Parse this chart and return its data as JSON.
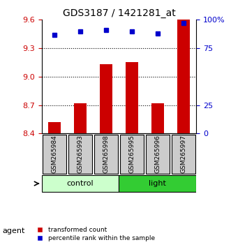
{
  "title": "GDS3187 / 1421281_at",
  "samples": [
    "GSM265984",
    "GSM265993",
    "GSM265998",
    "GSM265995",
    "GSM265996",
    "GSM265997"
  ],
  "bar_values": [
    8.52,
    8.72,
    9.13,
    9.15,
    8.72,
    9.6
  ],
  "percentile_values": [
    87,
    90,
    91,
    90,
    88,
    97
  ],
  "ylim_left": [
    8.4,
    9.6
  ],
  "ylim_right": [
    0,
    100
  ],
  "yticks_left": [
    8.4,
    8.7,
    9.0,
    9.3,
    9.6
  ],
  "yticks_right": [
    0,
    25,
    75,
    100
  ],
  "ytick_labels_right": [
    "0",
    "25",
    "75",
    "100%"
  ],
  "bar_color": "#cc0000",
  "dot_color": "#0000cc",
  "bar_bottom": 8.4,
  "groups": [
    {
      "label": "control",
      "start": 0,
      "end": 3,
      "color": "#ccffcc"
    },
    {
      "label": "light",
      "start": 3,
      "end": 6,
      "color": "#33cc33"
    }
  ],
  "agent_label": "agent",
  "legend": [
    {
      "label": "transformed count",
      "color": "#cc0000"
    },
    {
      "label": "percentile rank within the sample",
      "color": "#0000cc"
    }
  ],
  "grid_yticks": [
    8.7,
    9.0,
    9.3
  ],
  "sample_box_color": "#cccccc",
  "background_color": "#ffffff"
}
